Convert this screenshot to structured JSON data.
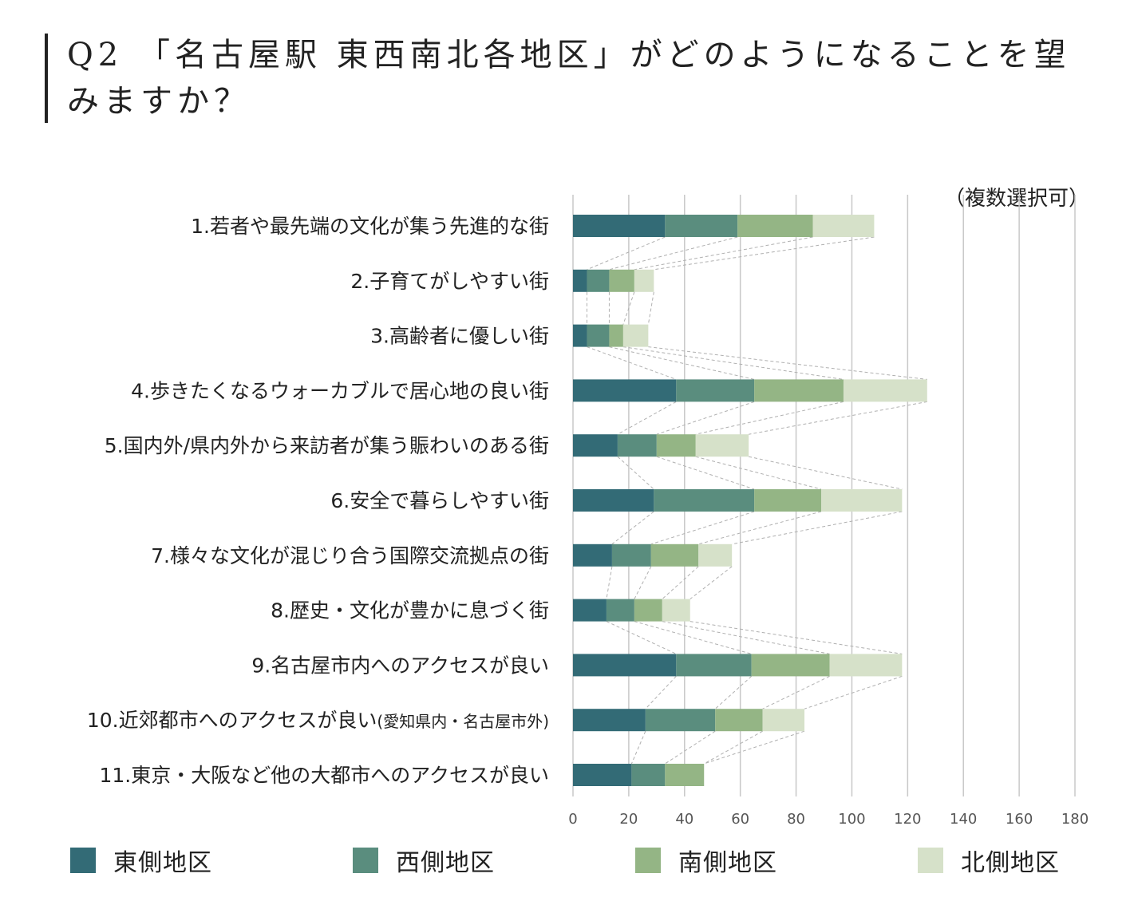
{
  "title": "Q2 「名古屋駅 東西南北各地区」がどのようになることを望みますか？",
  "note": "（複数選択可）",
  "colors": {
    "east": "#336b76",
    "west": "#5a8d7e",
    "south": "#94b585",
    "north": "#d6e1c9",
    "grid": "#c8c8c8",
    "connector": "#b0b0b0"
  },
  "legend": [
    {
      "label": "東側地区",
      "color": "#336b76"
    },
    {
      "label": "西側地区",
      "color": "#5a8d7e"
    },
    {
      "label": "南側地区",
      "color": "#94b585"
    },
    {
      "label": "北側地区",
      "color": "#d6e1c9"
    }
  ],
  "chart_data": {
    "type": "bar",
    "orientation": "horizontal",
    "stacked": true,
    "categories": [
      "1.若者や最先端の文化が集う先進的な街",
      "2.子育てがしやすい街",
      "3.高齢者に優しい街",
      "4.歩きたくなるウォーカブルで居心地の良い街",
      "5.国内外/県内外から来訪者が集う賑わいのある街",
      "6.安全で暮らしやすい街",
      "7.様々な文化が混じり合う国際交流拠点の街",
      "8.歴史・文化が豊かに息づく街",
      "9.名古屋市内へのアクセスが良い",
      "10.近郊都市へのアクセスが良い",
      "11.東京・大阪など他の大都市へのアクセスが良い"
    ],
    "category_suffix": {
      "9": "(愛知県内・名古屋市外)"
    },
    "series": [
      {
        "name": "東側地区",
        "values": [
          33,
          5,
          5,
          37,
          16,
          29,
          14,
          12,
          37,
          26,
          21
        ]
      },
      {
        "name": "西側地区",
        "values": [
          26,
          8,
          8,
          28,
          14,
          36,
          14,
          10,
          27,
          25,
          12
        ]
      },
      {
        "name": "南側地区",
        "values": [
          27,
          9,
          5,
          32,
          14,
          24,
          17,
          10,
          28,
          17,
          14
        ]
      },
      {
        "name": "北側地区",
        "values": [
          22,
          7,
          9,
          30,
          19,
          29,
          12,
          10,
          26,
          15,
          0
        ]
      }
    ],
    "xlim": [
      0,
      180
    ],
    "xticks": [
      "0",
      "20",
      "40",
      "60",
      "80",
      "100",
      "120",
      "140",
      "160",
      "180"
    ],
    "grid": true,
    "legend_position": "bottom"
  }
}
